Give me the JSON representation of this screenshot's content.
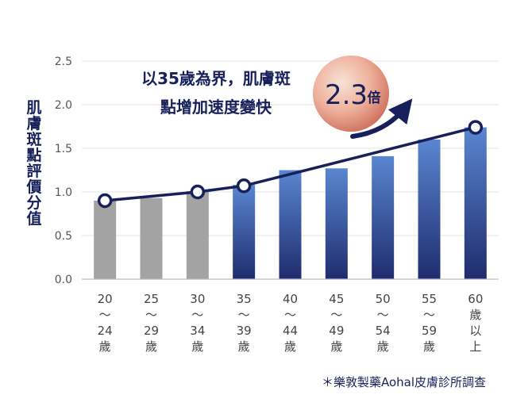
{
  "chart_data": {
    "type": "bar",
    "ylabel": "肌膚斑點評價分值",
    "ylim": [
      0,
      2.5
    ],
    "yticks": [
      "0.0",
      "0.5",
      "1.0",
      "1.5",
      "2.0",
      "2.5"
    ],
    "categories": [
      [
        "20",
        "～",
        "24",
        "歲"
      ],
      [
        "25",
        "～",
        "29",
        "歲"
      ],
      [
        "30",
        "～",
        "34",
        "歲"
      ],
      [
        "35",
        "～",
        "39",
        "歲"
      ],
      [
        "40",
        "～",
        "44",
        "歲"
      ],
      [
        "45",
        "～",
        "49",
        "歲"
      ],
      [
        "50",
        "～",
        "54",
        "歲"
      ],
      [
        "55",
        "～",
        "59",
        "歲"
      ],
      [
        "60",
        "歲",
        "以",
        "上"
      ]
    ],
    "values": [
      0.9,
      0.93,
      1.01,
      1.08,
      1.25,
      1.27,
      1.41,
      1.6,
      1.74
    ],
    "line_points": [
      {
        "x": 0,
        "y": 0.9
      },
      {
        "x": 2,
        "y": 1.0
      },
      {
        "x": 3,
        "y": 1.07
      },
      {
        "x": 8,
        "y": 1.74
      }
    ],
    "annotation": {
      "lines": [
        "以35歲為界，肌膚斑",
        "點增加速度變快"
      ],
      "badge_number": "2.3",
      "badge_unit": "倍"
    },
    "footnote": "＊樂敦製藥Aohal皮膚診所調查",
    "colors": {
      "gray_bar": "#a3a3a3",
      "blue_bar_top": "#5a86d0",
      "blue_bar_bottom": "#1f2c6e",
      "line": "#17205a",
      "badge_center": "#f6d6c6",
      "badge_edge": "#d07562"
    }
  }
}
